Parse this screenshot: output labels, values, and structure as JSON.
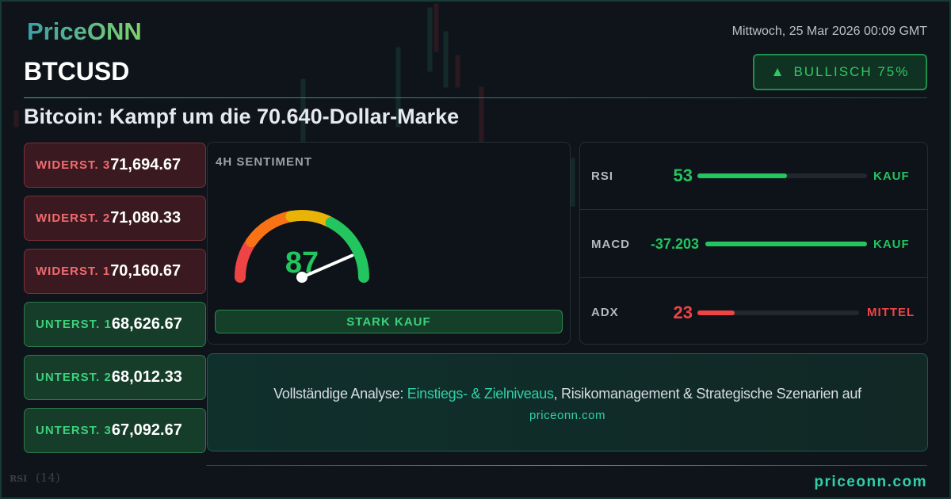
{
  "brand": {
    "logo": "PriceONN",
    "footer": "priceonn.com"
  },
  "header": {
    "date": "Mittwoch, 25 Mar 2026 00:09 GMT",
    "symbol": "BTCUSD",
    "headline": "Bitcoin: Kampf um die 70.640-Dollar-Marke",
    "badge": {
      "icon": "triangle-up-icon",
      "label": "BULLISCH 75%"
    }
  },
  "levels": [
    {
      "label": "WIDERST. 3",
      "value": "71,694.67",
      "type": "resistance"
    },
    {
      "label": "WIDERST. 2",
      "value": "71,080.33",
      "type": "resistance"
    },
    {
      "label": "WIDERST. 1",
      "value": "70,160.67",
      "type": "resistance"
    },
    {
      "label": "UNTERST. 1",
      "value": "68,626.67",
      "type": "support"
    },
    {
      "label": "UNTERST. 2",
      "value": "68,012.33",
      "type": "support"
    },
    {
      "label": "UNTERST. 3",
      "value": "67,092.67",
      "type": "support"
    }
  ],
  "sentiment": {
    "title": "4H SENTIMENT",
    "score": "87",
    "score_value": 87,
    "verdict": "STARK KAUF"
  },
  "indicators": [
    {
      "name": "RSI",
      "value": "53",
      "signal": "KAUF",
      "fill": 0.53,
      "color": "#22c55e"
    },
    {
      "name": "MACD",
      "value": "-37.203",
      "signal": "KAUF",
      "fill": 1.0,
      "color": "#22c55e"
    },
    {
      "name": "ADX",
      "value": "23",
      "signal": "MITTEL",
      "fill": 0.23,
      "color": "#ef4444"
    }
  ],
  "cta": {
    "prefix": "Vollständige Analyse: ",
    "highlight": "Einstiegs- & Zielniveaus",
    "suffix": ", Risikomanagement & Strategische Szenarien auf",
    "link": "priceonn.com"
  },
  "background": {
    "indicator_label": "RSI",
    "indicator_period": "(14)"
  },
  "colors": {
    "green": "#22c55e",
    "red": "#ef4444",
    "orange": "#f97316",
    "yellow": "#eab308",
    "teal": "#2fd0a8"
  }
}
